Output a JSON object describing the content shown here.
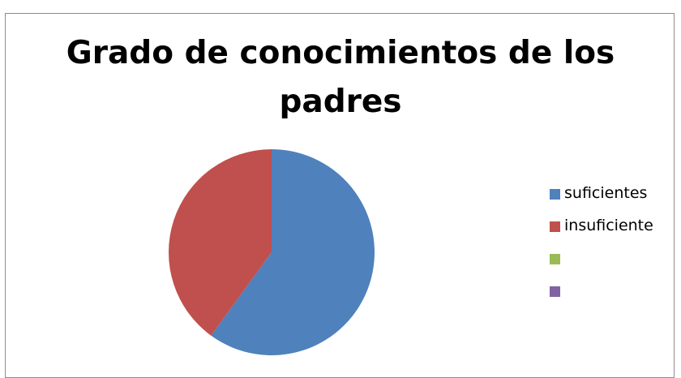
{
  "chart_data": {
    "type": "pie",
    "title": "Grado de conocimientos de los padres",
    "title_lines": [
      "Grado de conocimientos de los",
      "padres"
    ],
    "categories": [
      "suficientes",
      "insuficiente",
      "",
      ""
    ],
    "values": [
      60,
      40,
      0,
      0
    ],
    "colors": [
      "#4f81bd",
      "#c0504d",
      "#9bbb59",
      "#8064a2"
    ],
    "legend": {
      "position": "right",
      "entries": [
        "suficientes",
        "insuficiente",
        "",
        ""
      ]
    },
    "start_angle_deg": 0,
    "direction": "clockwise"
  }
}
